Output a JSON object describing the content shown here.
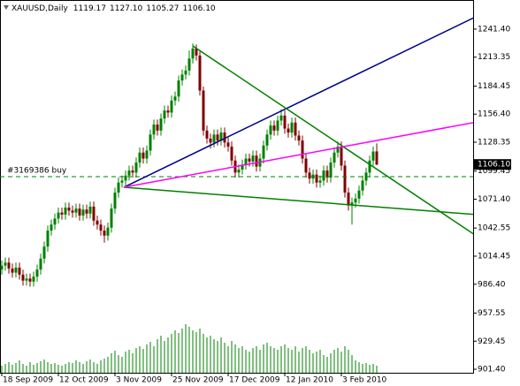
{
  "chart_data": {
    "type": "candlestick",
    "title": "XAUUSD,Daily",
    "header_values": [
      {
        "value": 1119.17,
        "label": "1119.17"
      },
      {
        "value": 1127.1,
        "label": "1127.10"
      },
      {
        "value": 1105.27,
        "label": "1105.27"
      },
      {
        "value": 1106.1,
        "label": "1106.10"
      }
    ],
    "categories": [
      "18 Sep 2009",
      null,
      null,
      null,
      null,
      null,
      null,
      null,
      null,
      null,
      null,
      null,
      null,
      null,
      null,
      null,
      "12 Oct 2009",
      null,
      null,
      null,
      null,
      null,
      null,
      null,
      null,
      null,
      null,
      null,
      null,
      null,
      null,
      null,
      "3 Nov 2009",
      null,
      null,
      null,
      null,
      null,
      null,
      null,
      null,
      null,
      null,
      null,
      null,
      null,
      null,
      null,
      "25 Nov 2009",
      null,
      null,
      null,
      null,
      null,
      null,
      null,
      null,
      null,
      null,
      null,
      null,
      null,
      null,
      null,
      "17 Dec 2009",
      null,
      null,
      null,
      null,
      null,
      null,
      null,
      null,
      null,
      null,
      null,
      null,
      null,
      null,
      null,
      "12 Jan 2010",
      null,
      null,
      null,
      null,
      null,
      null,
      null,
      null,
      null,
      null,
      null,
      null,
      null,
      null,
      null,
      "3 Feb 2010",
      null,
      null,
      null,
      null,
      null,
      null,
      null,
      null,
      null,
      null
    ],
    "open": [
      1001,
      1005,
      1008,
      1002,
      998,
      1003,
      996,
      990,
      992,
      989,
      994,
      1001,
      1012,
      1024,
      1040,
      1046,
      1052,
      1058,
      1056,
      1063,
      1060,
      1058,
      1062,
      1055,
      1061,
      1057,
      1064,
      1050,
      1046,
      1040,
      1035,
      1043,
      1062,
      1078,
      1088,
      1090,
      1095,
      1100,
      1098,
      1108,
      1118,
      1112,
      1120,
      1136,
      1146,
      1140,
      1152,
      1160,
      1158,
      1170,
      1174,
      1190,
      1196,
      1200,
      1212,
      1222,
      1215,
      1180,
      1140,
      1132,
      1128,
      1136,
      1130,
      1138,
      1128,
      1124,
      1110,
      1098,
      1101,
      1106,
      1112,
      1109,
      1115,
      1104,
      1112,
      1125,
      1136,
      1145,
      1140,
      1150,
      1155,
      1142,
      1138,
      1148,
      1135,
      1130,
      1112,
      1098,
      1092,
      1096,
      1088,
      1090,
      1100,
      1093,
      1108,
      1118,
      1124,
      1105,
      1078,
      1065,
      1068,
      1072,
      1080,
      1090,
      1098,
      1110,
      1119.17
    ],
    "high": [
      1010,
      1013,
      1013,
      1007,
      1008,
      1008,
      1001,
      997,
      997,
      999,
      1006,
      1017,
      1029,
      1045,
      1051,
      1057,
      1063,
      1063,
      1068,
      1068,
      1065,
      1067,
      1067,
      1066,
      1066,
      1069,
      1069,
      1055,
      1051,
      1045,
      1048,
      1067,
      1083,
      1093,
      1095,
      1100,
      1105,
      1105,
      1113,
      1123,
      1123,
      1125,
      1141,
      1151,
      1151,
      1157,
      1165,
      1165,
      1175,
      1179,
      1195,
      1201,
      1205,
      1220,
      1227,
      1226,
      1219,
      1184,
      1145,
      1137,
      1141,
      1141,
      1143,
      1143,
      1133,
      1129,
      1115,
      1106,
      1111,
      1117,
      1117,
      1120,
      1120,
      1117,
      1130,
      1141,
      1150,
      1150,
      1155,
      1161,
      1160,
      1147,
      1153,
      1153,
      1140,
      1135,
      1117,
      1103,
      1101,
      1101,
      1095,
      1105,
      1105,
      1113,
      1123,
      1129,
      1129,
      1110,
      1083,
      1073,
      1077,
      1085,
      1095,
      1103,
      1115,
      1124,
      1127.1
    ],
    "low": [
      996,
      1000,
      997,
      993,
      993,
      991,
      985,
      985,
      984,
      984,
      989,
      996,
      1007,
      1019,
      1035,
      1041,
      1047,
      1051,
      1051,
      1055,
      1053,
      1053,
      1050,
      1050,
      1052,
      1052,
      1045,
      1041,
      1035,
      1028,
      1030,
      1038,
      1057,
      1073,
      1083,
      1085,
      1090,
      1093,
      1093,
      1103,
      1107,
      1107,
      1115,
      1131,
      1135,
      1135,
      1147,
      1153,
      1153,
      1165,
      1169,
      1185,
      1191,
      1195,
      1207,
      1210,
      1175,
      1135,
      1127,
      1122,
      1123,
      1125,
      1125,
      1123,
      1119,
      1105,
      1093,
      1093,
      1096,
      1101,
      1104,
      1104,
      1099,
      1099,
      1107,
      1120,
      1131,
      1135,
      1135,
      1145,
      1137,
      1133,
      1133,
      1130,
      1125,
      1107,
      1093,
      1087,
      1087,
      1083,
      1083,
      1085,
      1088,
      1088,
      1103,
      1113,
      1100,
      1073,
      1060,
      1046,
      1063,
      1067,
      1075,
      1085,
      1093,
      1105,
      1105.27
    ],
    "close": [
      1005,
      1008,
      1002,
      998,
      1003,
      996,
      990,
      992,
      989,
      994,
      1001,
      1012,
      1024,
      1040,
      1046,
      1052,
      1058,
      1056,
      1063,
      1060,
      1058,
      1062,
      1055,
      1061,
      1057,
      1064,
      1050,
      1046,
      1040,
      1035,
      1043,
      1062,
      1078,
      1088,
      1090,
      1095,
      1100,
      1098,
      1108,
      1118,
      1112,
      1120,
      1136,
      1146,
      1140,
      1152,
      1160,
      1158,
      1170,
      1174,
      1190,
      1196,
      1200,
      1212,
      1222,
      1215,
      1180,
      1140,
      1132,
      1128,
      1136,
      1130,
      1138,
      1128,
      1124,
      1110,
      1098,
      1101,
      1106,
      1112,
      1109,
      1115,
      1104,
      1112,
      1125,
      1136,
      1145,
      1140,
      1150,
      1155,
      1142,
      1138,
      1148,
      1135,
      1130,
      1112,
      1098,
      1092,
      1096,
      1088,
      1090,
      1100,
      1093,
      1108,
      1118,
      1124,
      1105,
      1078,
      1065,
      1068,
      1072,
      1080,
      1090,
      1098,
      1110,
      1119,
      1106.1
    ],
    "volume": [
      8,
      10,
      12,
      9,
      11,
      14,
      10,
      8,
      12,
      9,
      11,
      13,
      15,
      12,
      10,
      11,
      9,
      8,
      10,
      12,
      11,
      14,
      12,
      10,
      13,
      15,
      12,
      10,
      14,
      16,
      18,
      22,
      25,
      20,
      18,
      24,
      26,
      22,
      28,
      30,
      27,
      32,
      35,
      30,
      38,
      42,
      36,
      40,
      44,
      48,
      45,
      50,
      55,
      52,
      48,
      46,
      50,
      44,
      40,
      42,
      38,
      36,
      40,
      34,
      30,
      36,
      32,
      28,
      30,
      26,
      24,
      28,
      30,
      26,
      32,
      34,
      30,
      28,
      26,
      30,
      32,
      28,
      26,
      30,
      24,
      28,
      30,
      26,
      22,
      24,
      26,
      20,
      18,
      22,
      26,
      28,
      24,
      30,
      26,
      20,
      14,
      12,
      10,
      11,
      9,
      10,
      8
    ],
    "up_color": "#008000",
    "down_color": "#800000",
    "volume_color": "#008000",
    "xlim": [
      -0.5,
      133.25
    ],
    "ylim": [
      897.9,
      1270.5
    ],
    "yticks": [
      {
        "value": 1241.4,
        "label": "1241.40"
      },
      {
        "value": 1213.35,
        "label": "1213.35"
      },
      {
        "value": 1184.45,
        "label": "1184.45"
      },
      {
        "value": 1156.4,
        "label": "1156.40"
      },
      {
        "value": 1128.35,
        "label": "1128.35"
      },
      {
        "value": 1099.45,
        "label": "1099.45"
      },
      {
        "value": 1071.4,
        "label": "1071.40"
      },
      {
        "value": 1042.55,
        "label": "1042.55"
      },
      {
        "value": 1014.45,
        "label": "1014.45"
      },
      {
        "value": 986.4,
        "label": "986.40"
      },
      {
        "value": 957.55,
        "label": "957.55"
      },
      {
        "value": 929.45,
        "label": "929.45"
      },
      {
        "value": 901.4,
        "label": "901.40"
      }
    ],
    "grid": false,
    "current_price": {
      "value": 1106.1,
      "label": "1106.10"
    },
    "order": {
      "label": "#3169386 buy",
      "price": 1093.9,
      "color": "#008000"
    },
    "trendlines": [
      {
        "color": "#00008b",
        "x": [
          34.5,
          134.5
        ],
        "y": [
          1083.3,
          1254.6
        ]
      },
      {
        "color": "#008000",
        "x": [
          54,
          134.5
        ],
        "y": [
          1224.6,
          1033.9
        ]
      },
      {
        "color": "#008000",
        "x": [
          34.5,
          134.5
        ],
        "y": [
          1083.3,
          1055.9
        ]
      },
      {
        "color": "#ff00ff",
        "x": [
          34.5,
          134.5
        ],
        "y": [
          1083.3,
          1148.7
        ]
      }
    ]
  }
}
